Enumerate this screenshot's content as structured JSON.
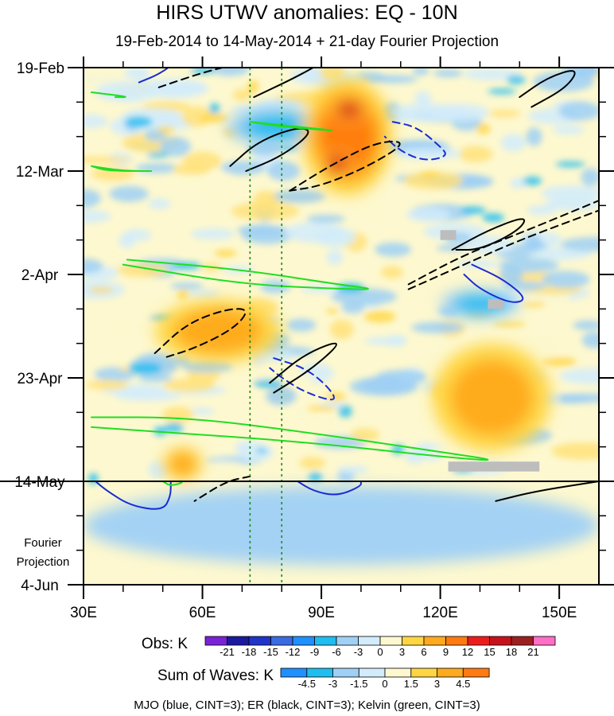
{
  "chart_data": {
    "type": "heatmap",
    "title": "HIRS UTWV anomalies: EQ - 10N",
    "subtitle": "19-Feb-2014 to 14-May-2014 + 21-day Fourier Projection",
    "x_axis": {
      "ticks": [
        "30E",
        "60E",
        "90E",
        "120E",
        "150E"
      ],
      "tick_values": [
        30,
        60,
        90,
        120,
        150
      ],
      "range": [
        30,
        160
      ]
    },
    "y_axis": {
      "ticks": [
        "19-Feb",
        "12-Mar",
        "2-Apr",
        "23-Apr",
        "14-May",
        "4-Jun"
      ],
      "tick_days": [
        0,
        21,
        42,
        63,
        84,
        105
      ],
      "range_days": [
        0,
        105
      ],
      "direction": "down"
    },
    "projection_label": [
      "Fourier",
      "Projection"
    ],
    "reference_lines_lon": [
      72,
      80
    ],
    "obs_colorbar": {
      "label": "Obs: K",
      "tick_labels": [
        "-21",
        "-18",
        "-15",
        "-12",
        "-9",
        "-6",
        "-3",
        "0",
        "3",
        "6",
        "9",
        "12",
        "15",
        "18",
        "21"
      ],
      "colors": [
        "#7a22d6",
        "#1a1a9e",
        "#1f34c8",
        "#3b6be0",
        "#1e90ff",
        "#1fbdf0",
        "#9fd0f5",
        "#d2ecfb",
        "#fdf8cf",
        "#ffd642",
        "#ffaa1e",
        "#ff7a10",
        "#ee1b1b",
        "#c8121b",
        "#9c2020",
        "#ff6fc8"
      ]
    },
    "waves_colorbar": {
      "label": "Sum of Waves: K",
      "tick_labels": [
        "-4.5",
        "-3",
        "-1.5",
        "0",
        "1.5",
        "3",
        "4.5"
      ],
      "colors": [
        "#1e90ff",
        "#1fbdf0",
        "#9fd0f5",
        "#d2ecfb",
        "#fdf8cf",
        "#ffd642",
        "#ffaa1e",
        "#ff7a10"
      ]
    },
    "legend_text": "MJO (blue, CINT=3); ER (black, CINT=3); Kelvin (green, CINT=3)",
    "anomaly_regions": [
      {
        "sign": "positive",
        "level": 15,
        "lon": [
          92,
          102
        ],
        "day": [
          6,
          11
        ]
      },
      {
        "sign": "positive",
        "level": 15,
        "lon": [
          90,
          98
        ],
        "day": [
          17,
          22
        ]
      },
      {
        "sign": "positive",
        "level": 9,
        "lon": [
          85,
          108
        ],
        "day": [
          2,
          26
        ]
      },
      {
        "sign": "positive",
        "level": 6,
        "lon": [
          48,
          80
        ],
        "day": [
          47,
          60
        ]
      },
      {
        "sign": "positive",
        "level": 6,
        "lon": [
          50,
          60
        ],
        "day": [
          77,
          84
        ]
      },
      {
        "sign": "positive",
        "level": 6,
        "lon": [
          118,
          148
        ],
        "day": [
          56,
          78
        ]
      },
      {
        "sign": "negative",
        "level": -6,
        "lon": [
          66,
          92
        ],
        "day": [
          8,
          16
        ]
      },
      {
        "sign": "negative",
        "level": -6,
        "lon": [
          120,
          140
        ],
        "day": [
          45,
          51
        ]
      },
      {
        "sign": "negative",
        "level": -3,
        "lon": [
          30,
          160
        ],
        "day": [
          85,
          101
        ]
      }
    ],
    "wave_contours": {
      "MJO": [
        {
          "style": "solid",
          "points": [
            [
              56,
              -3
            ],
            [
              50,
              1
            ],
            [
              44,
              3
            ]
          ]
        },
        {
          "style": "dashed",
          "points": [
            [
              108,
              11
            ],
            [
              114,
              12
            ],
            [
              120,
              16
            ],
            [
              122,
              18
            ],
            [
              116,
              19
            ],
            [
              110,
              17
            ],
            [
              106,
              14
            ]
          ]
        },
        {
          "style": "solid",
          "points": [
            [
              128,
              40
            ],
            [
              136,
              43
            ],
            [
              142,
              47
            ],
            [
              138,
              48
            ],
            [
              130,
              45
            ],
            [
              126,
              42
            ]
          ]
        },
        {
          "style": "dashed",
          "points": [
            [
              78,
              59
            ],
            [
              86,
              61
            ],
            [
              92,
              65
            ],
            [
              94,
              68
            ],
            [
              86,
              66
            ],
            [
              80,
              63
            ],
            [
              77,
              61
            ]
          ]
        },
        {
          "style": "solid",
          "points": [
            [
              33,
              84
            ],
            [
              36,
              86
            ],
            [
              42,
              89
            ],
            [
              50,
              90
            ],
            [
              52,
              87
            ],
            [
              52,
              84
            ]
          ]
        },
        {
          "style": "solid",
          "points": [
            [
              84,
              84
            ],
            [
              88,
              86
            ],
            [
              94,
              87
            ],
            [
              100,
              85
            ],
            [
              100,
              84
            ]
          ]
        }
      ],
      "ER": [
        {
          "style": "dashed",
          "points": [
            [
              49,
              4
            ],
            [
              60,
              1
            ],
            [
              70,
              -1
            ],
            [
              75,
              -3
            ]
          ]
        },
        {
          "style": "solid",
          "points": [
            [
              73,
              6
            ],
            [
              86,
              1
            ],
            [
              94,
              -3
            ]
          ]
        },
        {
          "style": "solid",
          "points": [
            [
              67,
              20
            ],
            [
              74,
              15
            ],
            [
              84,
              12
            ],
            [
              88,
              13
            ],
            [
              80,
              18
            ],
            [
              71,
              21
            ]
          ]
        },
        {
          "style": "dashed",
          "points": [
            [
              82,
              25
            ],
            [
              92,
              20
            ],
            [
              104,
              15
            ],
            [
              112,
              15
            ],
            [
              102,
              20
            ],
            [
              90,
              24
            ],
            [
              82,
              25
            ]
          ]
        },
        {
          "style": "solid",
          "points": [
            [
              123,
              37
            ],
            [
              132,
              33
            ],
            [
              142,
              30
            ],
            [
              140,
              33
            ],
            [
              130,
              37
            ],
            [
              124,
              37
            ]
          ]
        },
        {
          "style": "dashed",
          "points": [
            [
              112,
              45
            ],
            [
              126,
              40
            ],
            [
              140,
              35
            ],
            [
              160,
              29
            ]
          ]
        },
        {
          "style": "dashed",
          "points": [
            [
              112,
              44
            ],
            [
              126,
              38
            ],
            [
              142,
              33
            ],
            [
              160,
              27
            ]
          ]
        },
        {
          "style": "dashed",
          "points": [
            [
              48,
              58
            ],
            [
              56,
              52
            ],
            [
              66,
              49
            ],
            [
              72,
              49
            ],
            [
              68,
              53
            ],
            [
              58,
              57
            ],
            [
              50,
              59
            ]
          ]
        },
        {
          "style": "solid",
          "points": [
            [
              77,
              64
            ],
            [
              86,
              58
            ],
            [
              96,
              55
            ],
            [
              88,
              61
            ],
            [
              78,
              66
            ]
          ]
        },
        {
          "style": "dashed",
          "points": [
            [
              72,
              83
            ],
            [
              66,
              84
            ],
            [
              58,
              88
            ]
          ]
        },
        {
          "style": "solid",
          "points": [
            [
              134,
              88
            ],
            [
              144,
              86
            ],
            [
              160,
              84
            ]
          ]
        },
        {
          "style": "solid",
          "points": [
            [
              140,
              6
            ],
            [
              147,
              2
            ],
            [
              155,
              0
            ],
            [
              152,
              4
            ],
            [
              143,
              8
            ]
          ]
        }
      ],
      "Kelvin": [
        {
          "style": "solid",
          "points": [
            [
              41,
              39
            ],
            [
              70,
              41
            ],
            [
              94,
              44
            ],
            [
              104,
              45
            ],
            [
              96,
              45
            ],
            [
              70,
              44
            ],
            [
              40,
              40
            ]
          ]
        },
        {
          "style": "solid",
          "points": [
            [
              32,
              71
            ],
            [
              56,
              71
            ],
            [
              86,
              74
            ],
            [
              120,
              78
            ],
            [
              136,
              80
            ],
            [
              120,
              79
            ],
            [
              86,
              76
            ],
            [
              50,
              74
            ],
            [
              32,
              73
            ]
          ]
        },
        {
          "style": "solid",
          "points": [
            [
              32,
              20
            ],
            [
              40,
              21
            ],
            [
              50,
              21
            ],
            [
              36,
              21
            ],
            [
              32,
              20
            ]
          ]
        },
        {
          "style": "solid",
          "points": [
            [
              72,
              11
            ],
            [
              84,
              12
            ],
            [
              96,
              13
            ],
            [
              80,
              12
            ],
            [
              72,
              11
            ]
          ]
        },
        {
          "style": "solid",
          "points": [
            [
              32,
              5
            ],
            [
              42,
              6
            ],
            [
              38,
              6
            ]
          ]
        },
        {
          "style": "solid",
          "points": [
            [
              50,
              84
            ],
            [
              56,
              84
            ],
            [
              52,
              85
            ],
            [
              50,
              84
            ]
          ]
        }
      ]
    },
    "missing_regions": [
      {
        "lon": [
          120,
          124
        ],
        "day": [
          33,
          35
        ]
      },
      {
        "lon": [
          132,
          136
        ],
        "day": [
          47,
          49
        ]
      },
      {
        "lon": [
          122,
          145
        ],
        "day": [
          80,
          82
        ]
      }
    ]
  }
}
